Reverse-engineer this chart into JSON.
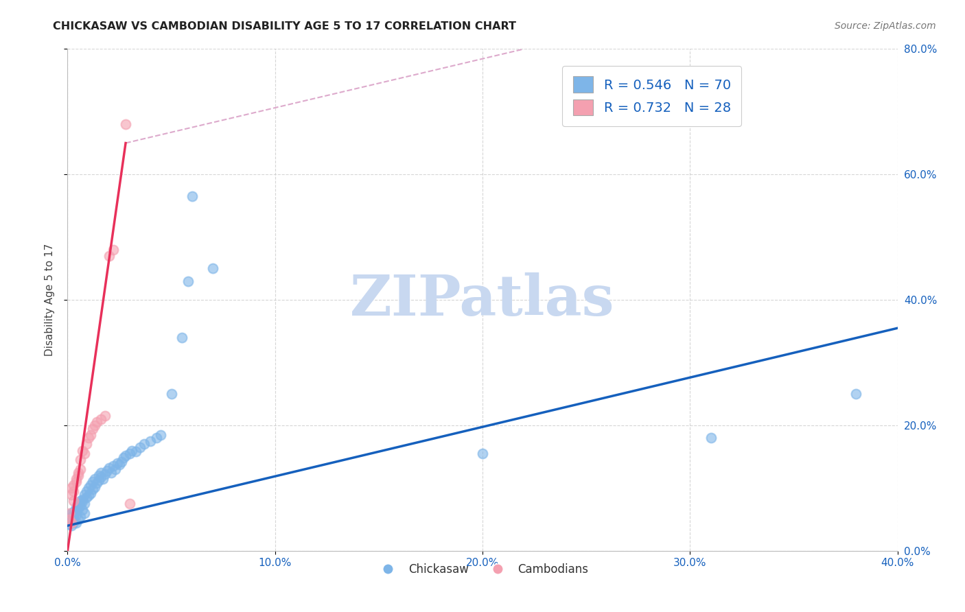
{
  "title": "CHICKASAW VS CAMBODIAN DISABILITY AGE 5 TO 17 CORRELATION CHART",
  "source": "Source: ZipAtlas.com",
  "ylabel": "Disability Age 5 to 17",
  "xlim": [
    0.0,
    0.4
  ],
  "ylim": [
    0.0,
    0.8
  ],
  "xticks": [
    0.0,
    0.1,
    0.2,
    0.3,
    0.4
  ],
  "yticks": [
    0.0,
    0.2,
    0.4,
    0.6,
    0.8
  ],
  "xtick_labels": [
    "0.0%",
    "10.0%",
    "20.0%",
    "30.0%",
    "40.0%"
  ],
  "ytick_labels": [
    "0.0%",
    "20.0%",
    "40.0%",
    "60.0%",
    "80.0%"
  ],
  "chickasaw_R": 0.546,
  "chickasaw_N": 70,
  "cambodian_R": 0.732,
  "cambodian_N": 28,
  "chickasaw_color": "#7EB5E8",
  "cambodian_color": "#F4A0B0",
  "trendline_chickasaw_color": "#1560BD",
  "trendline_cambodian_color": "#E8305A",
  "trendline_cambodian_dashed_color": "#DDAACC",
  "watermark_color": "#C8D8F0",
  "legend_label_1": "Chickasaw",
  "legend_label_2": "Cambodians",
  "trendline_blue_x0": 0.0,
  "trendline_blue_y0": 0.04,
  "trendline_blue_x1": 0.4,
  "trendline_blue_y1": 0.355,
  "trendline_pink_x0": 0.0,
  "trendline_pink_y0": 0.0,
  "trendline_pink_x1": 0.028,
  "trendline_pink_y1": 0.65,
  "trendline_dashed_x0": 0.028,
  "trendline_dashed_y0": 0.65,
  "trendline_dashed_x1": 0.22,
  "trendline_dashed_y1": 0.8,
  "chickasaw_x": [
    0.001,
    0.001,
    0.001,
    0.002,
    0.002,
    0.002,
    0.002,
    0.003,
    0.003,
    0.003,
    0.003,
    0.004,
    0.004,
    0.004,
    0.004,
    0.005,
    0.005,
    0.005,
    0.006,
    0.006,
    0.006,
    0.007,
    0.007,
    0.007,
    0.008,
    0.008,
    0.008,
    0.009,
    0.009,
    0.01,
    0.01,
    0.011,
    0.011,
    0.012,
    0.012,
    0.013,
    0.013,
    0.014,
    0.015,
    0.015,
    0.016,
    0.016,
    0.017,
    0.018,
    0.019,
    0.02,
    0.021,
    0.022,
    0.023,
    0.024,
    0.025,
    0.026,
    0.027,
    0.028,
    0.03,
    0.031,
    0.033,
    0.035,
    0.037,
    0.04,
    0.043,
    0.045,
    0.05,
    0.055,
    0.058,
    0.06,
    0.07,
    0.2,
    0.31,
    0.38
  ],
  "chickasaw_y": [
    0.05,
    0.045,
    0.042,
    0.048,
    0.055,
    0.06,
    0.04,
    0.052,
    0.058,
    0.045,
    0.062,
    0.065,
    0.058,
    0.07,
    0.045,
    0.068,
    0.075,
    0.05,
    0.072,
    0.08,
    0.055,
    0.078,
    0.065,
    0.082,
    0.075,
    0.09,
    0.06,
    0.085,
    0.095,
    0.088,
    0.1,
    0.092,
    0.105,
    0.098,
    0.11,
    0.102,
    0.115,
    0.108,
    0.112,
    0.12,
    0.118,
    0.125,
    0.115,
    0.122,
    0.128,
    0.132,
    0.125,
    0.135,
    0.13,
    0.14,
    0.138,
    0.142,
    0.148,
    0.152,
    0.155,
    0.16,
    0.158,
    0.165,
    0.17,
    0.175,
    0.18,
    0.185,
    0.25,
    0.34,
    0.43,
    0.565,
    0.45,
    0.155,
    0.18,
    0.25
  ],
  "cambodian_x": [
    0.001,
    0.001,
    0.002,
    0.002,
    0.002,
    0.003,
    0.003,
    0.003,
    0.004,
    0.004,
    0.005,
    0.005,
    0.006,
    0.006,
    0.007,
    0.008,
    0.009,
    0.01,
    0.011,
    0.012,
    0.013,
    0.014,
    0.016,
    0.018,
    0.02,
    0.022,
    0.028,
    0.03
  ],
  "cambodian_y": [
    0.05,
    0.06,
    0.045,
    0.09,
    0.1,
    0.08,
    0.095,
    0.105,
    0.11,
    0.115,
    0.12,
    0.125,
    0.13,
    0.145,
    0.16,
    0.155,
    0.17,
    0.18,
    0.185,
    0.195,
    0.2,
    0.205,
    0.21,
    0.215,
    0.47,
    0.48,
    0.68,
    0.075
  ]
}
